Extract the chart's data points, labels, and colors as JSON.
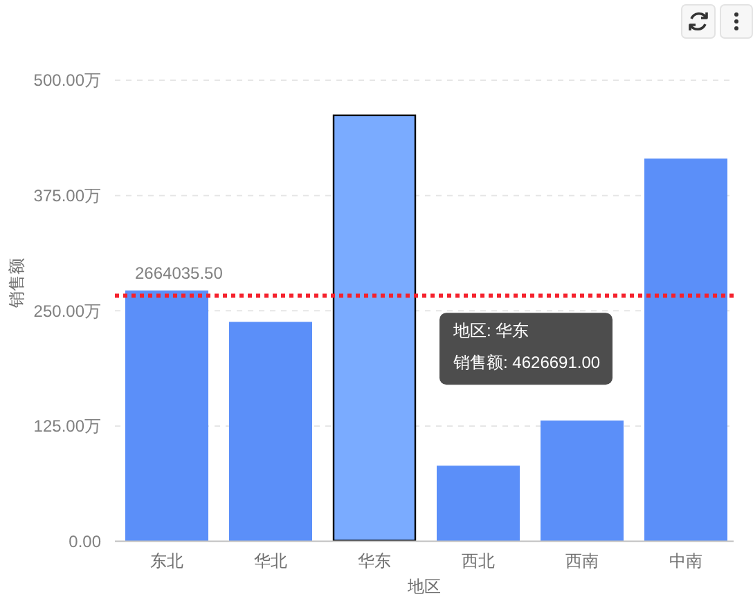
{
  "chart_data": {
    "type": "bar",
    "xlabel": "地区",
    "ylabel": "销售额",
    "categories": [
      "东北",
      "华北",
      "华东",
      "西北",
      "西南",
      "中南"
    ],
    "values": [
      272,
      238,
      462.6691,
      82,
      131,
      415
    ],
    "colors": [
      "#5b8ff9",
      "#5b8ff9",
      "#7aabff",
      "#5b8ff9",
      "#5b8ff9",
      "#5b8ff9"
    ],
    "ylim": [
      0,
      500
    ],
    "yticks": [
      {
        "value": 0,
        "label": "0.00"
      },
      {
        "value": 125,
        "label": "125.00万"
      },
      {
        "value": 250,
        "label": "250.00万"
      },
      {
        "value": 375,
        "label": "375.00万"
      },
      {
        "value": 500,
        "label": "500.00万"
      }
    ],
    "grid": "y",
    "ref_lines": [
      {
        "axis": "y",
        "value": 266.40355,
        "color": "#f5222d",
        "line_style": "dotted"
      }
    ],
    "annotations": [
      {
        "text": "2664035.50",
        "x": "东北",
        "y": 266.40355
      },
      "地区: 华东",
      "销售额: 4626691.00"
    ]
  }
}
